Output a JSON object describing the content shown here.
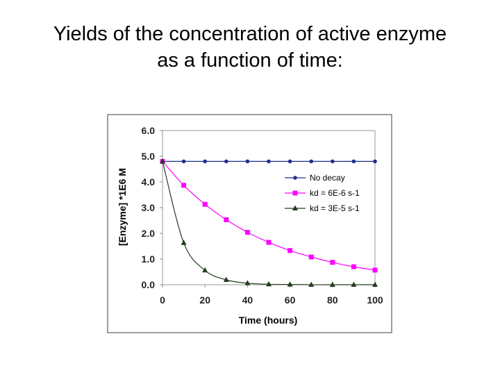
{
  "title": {
    "line1": "Yields of the concentration of active enzyme",
    "line2": "as a function of time:"
  },
  "chart_data": {
    "type": "line",
    "x": [
      0,
      10,
      20,
      30,
      40,
      50,
      60,
      70,
      80,
      90,
      100
    ],
    "series": [
      {
        "name": "No decay",
        "values": [
          4.8,
          4.8,
          4.8,
          4.8,
          4.8,
          4.8,
          4.8,
          4.8,
          4.8,
          4.8,
          4.8
        ],
        "color": "#1f2f8f",
        "marker": "circle"
      },
      {
        "name": "kd = 6E-6 s-1",
        "values": [
          4.8,
          3.87,
          3.13,
          2.53,
          2.04,
          1.65,
          1.33,
          1.08,
          0.87,
          0.7,
          0.57
        ],
        "color": "#ff00ff",
        "marker": "square"
      },
      {
        "name": "kd = 3E-5 s-1",
        "values": [
          4.8,
          1.63,
          0.56,
          0.19,
          0.06,
          0.02,
          0.01,
          0.0,
          0.0,
          0.0,
          0.0
        ],
        "color": "#233b1e",
        "marker": "triangle"
      }
    ],
    "xlabel": "Time (hours)",
    "ylabel": "[Enzyme] *1E6 M",
    "xlim": [
      0,
      100
    ],
    "ylim": [
      0,
      6
    ],
    "xticks": [
      "0",
      "20",
      "40",
      "60",
      "80",
      "100"
    ],
    "yticks": [
      "0.0",
      "1.0",
      "2.0",
      "3.0",
      "4.0",
      "5.0",
      "6.0"
    ],
    "grid": false,
    "legend_position": "right"
  }
}
